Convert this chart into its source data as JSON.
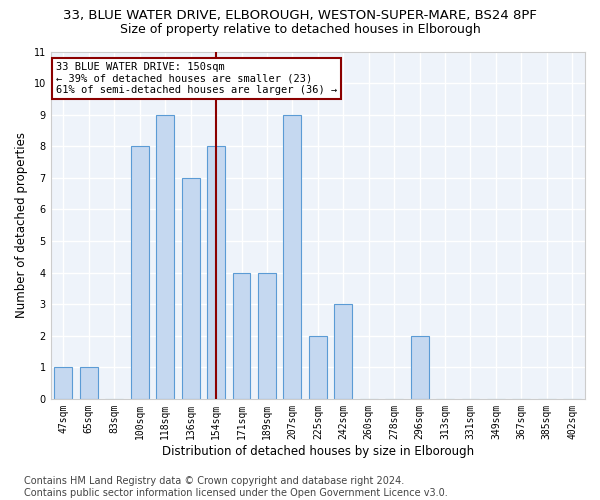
{
  "title1": "33, BLUE WATER DRIVE, ELBOROUGH, WESTON-SUPER-MARE, BS24 8PF",
  "title2": "Size of property relative to detached houses in Elborough",
  "xlabel": "Distribution of detached houses by size in Elborough",
  "ylabel": "Number of detached properties",
  "categories": [
    "47sqm",
    "65sqm",
    "83sqm",
    "100sqm",
    "118sqm",
    "136sqm",
    "154sqm",
    "171sqm",
    "189sqm",
    "207sqm",
    "225sqm",
    "242sqm",
    "260sqm",
    "278sqm",
    "296sqm",
    "313sqm",
    "331sqm",
    "349sqm",
    "367sqm",
    "385sqm",
    "402sqm"
  ],
  "values": [
    1,
    1,
    0,
    8,
    9,
    7,
    8,
    4,
    4,
    9,
    2,
    3,
    0,
    0,
    2,
    0,
    0,
    0,
    0,
    0,
    0
  ],
  "bar_color": "#c5d8f0",
  "bar_edge_color": "#5b9bd5",
  "vline_x_index": 6,
  "vline_color": "#8b0000",
  "annotation_line1": "33 BLUE WATER DRIVE: 150sqm",
  "annotation_line2": "← 39% of detached houses are smaller (23)",
  "annotation_line3": "61% of semi-detached houses are larger (36) →",
  "annotation_box_edgecolor": "#8b0000",
  "ylim_min": 0,
  "ylim_max": 11,
  "yticks": [
    0,
    1,
    2,
    3,
    4,
    5,
    6,
    7,
    8,
    9,
    10,
    11
  ],
  "footnote_line1": "Contains HM Land Registry data © Crown copyright and database right 2024.",
  "footnote_line2": "Contains public sector information licensed under the Open Government Licence v3.0.",
  "bg_color": "#eef3fa",
  "grid_color": "#ffffff",
  "title1_fontsize": 9.5,
  "title2_fontsize": 9,
  "tick_fontsize": 7,
  "ylabel_fontsize": 8.5,
  "xlabel_fontsize": 8.5,
  "ann_fontsize": 7.5,
  "footnote_fontsize": 7,
  "bar_width": 0.7
}
